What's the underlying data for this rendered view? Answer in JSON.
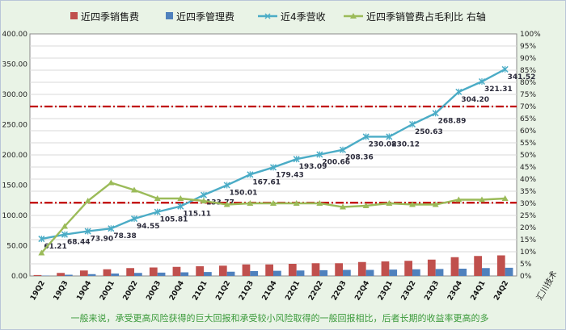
{
  "chart_data": {
    "type": "bar+line",
    "categories": [
      "19Q2",
      "19Q3",
      "19Q4",
      "20Q1",
      "20Q2",
      "20Q3",
      "20Q4",
      "21Q1",
      "21Q2",
      "21Q3",
      "21Q4",
      "22Q1",
      "22Q2",
      "22Q3",
      "22Q4",
      "23Q1",
      "23Q2",
      "23Q3",
      "23Q4",
      "24Q1",
      "24Q2"
    ],
    "ylim_left": [
      0,
      400
    ],
    "ylim_right": [
      0,
      1
    ],
    "left_ticks": [
      "0.00",
      "50.00",
      "100.00",
      "150.00",
      "200.00",
      "250.00",
      "300.00",
      "350.00",
      "400.00"
    ],
    "right_ticks": [
      "0%",
      "5%",
      "10%",
      "15%",
      "20%",
      "25%",
      "30%",
      "35%",
      "40%",
      "45%",
      "50%",
      "55%",
      "60%",
      "65%",
      "70%",
      "75%",
      "80%",
      "85%",
      "90%",
      "95%",
      "100%"
    ],
    "series": [
      {
        "name": "近四季销售费",
        "type": "bar",
        "axis": "left",
        "color": "#c0504d",
        "values": [
          1.5,
          5,
          9,
          11,
          13,
          14,
          15,
          16,
          17,
          19,
          19,
          20,
          21,
          21,
          23,
          24,
          25,
          27,
          31,
          33,
          34
        ]
      },
      {
        "name": "近四季管理费",
        "type": "bar",
        "axis": "left",
        "color": "#4f81bd",
        "values": [
          0.5,
          2,
          3,
          4,
          5,
          5.5,
          6,
          6.5,
          7,
          8,
          8.5,
          9,
          9.5,
          10,
          10,
          10.5,
          11,
          11.5,
          12,
          13,
          13.5
        ]
      },
      {
        "name": "近4季营收",
        "type": "line",
        "axis": "left",
        "color": "#4bacc6",
        "values": [
          61.21,
          68.44,
          73.9,
          78.38,
          94.55,
          105.81,
          115.11,
          133.77,
          150.01,
          167.61,
          179.43,
          193.09,
          200.66,
          208.36,
          230.08,
          230.12,
          250.63,
          268.89,
          304.2,
          321.31,
          341.52
        ],
        "labels": [
          "61.21",
          "68.44",
          "73.90",
          "78.38",
          "94.55",
          "105.81",
          "115.11",
          "133.77",
          "150.01",
          "167.61",
          "179.43",
          "193.09",
          "200.66",
          "208.36",
          "230.08",
          "230.12",
          "250.63",
          "268.89",
          "304.20",
          "321.31",
          "341.52"
        ]
      },
      {
        "name": "近四季销管费占毛利比 右轴",
        "type": "line",
        "axis": "right",
        "color": "#9bbb59",
        "values": [
          0.095,
          0.205,
          0.31,
          0.385,
          0.355,
          0.32,
          0.32,
          0.31,
          0.295,
          0.3,
          0.3,
          0.3,
          0.3,
          0.285,
          0.29,
          0.3,
          0.295,
          0.295,
          0.315,
          0.315,
          0.32
        ]
      }
    ],
    "reference_lines": [
      {
        "axis": "left",
        "value": 280,
        "color": "#c00000"
      },
      {
        "axis": "left",
        "value": 121,
        "color": "#c00000"
      }
    ],
    "legend_position": "top",
    "grid": "horizontal"
  },
  "note": "一般来说，承受更高风险获得的巨大回报和承受较小风险取得的一般回报相比，后者长期的收益率更高的多",
  "source": "汇川技术"
}
